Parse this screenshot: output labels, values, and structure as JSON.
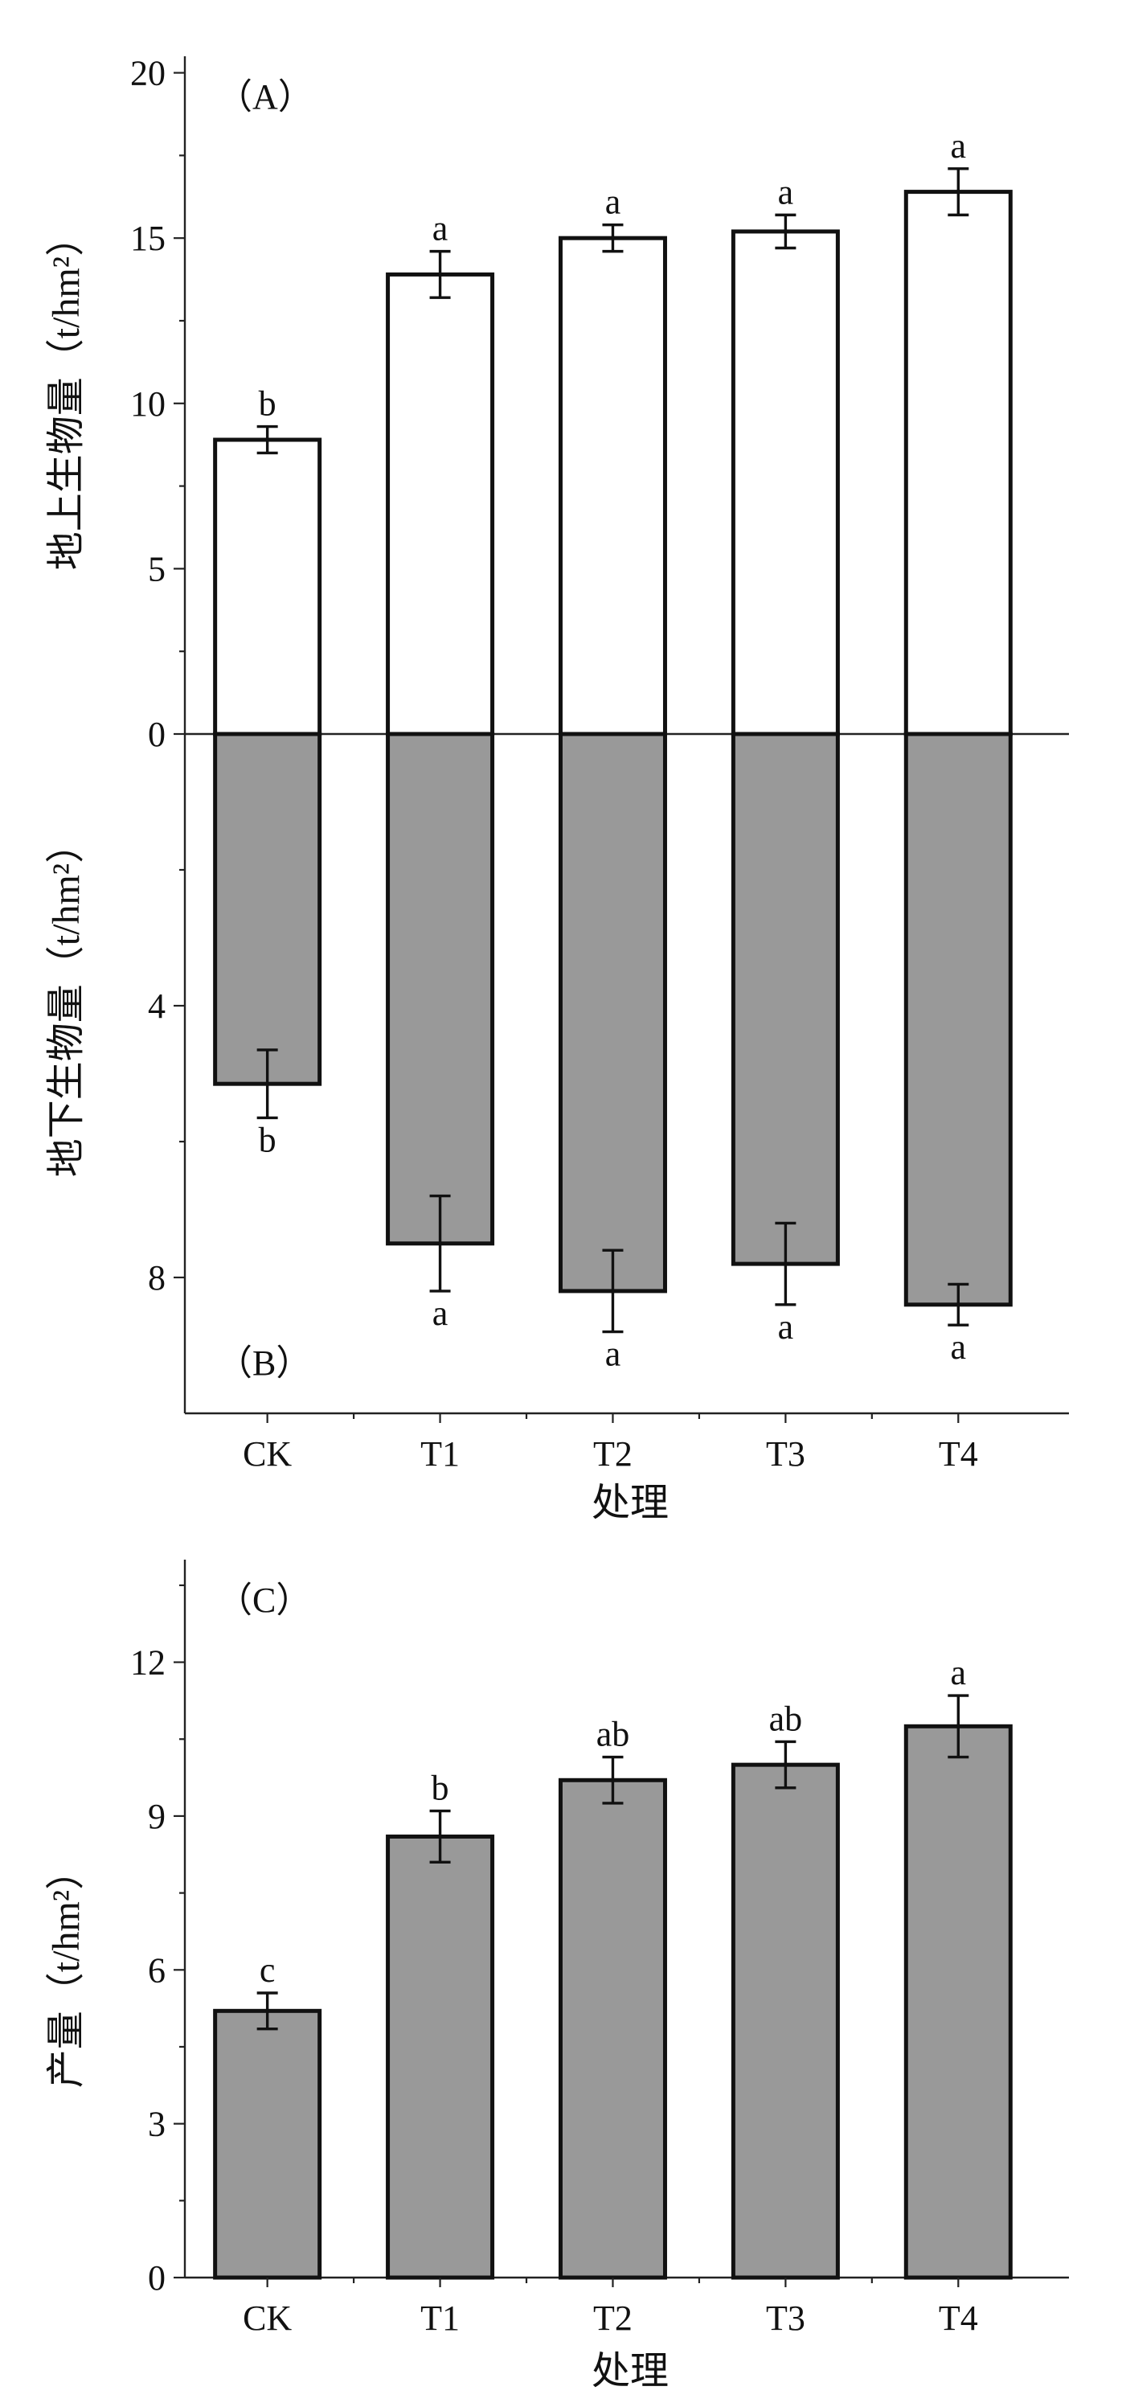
{
  "chart_data": [
    {
      "type": "bar",
      "panel_label": "（A）",
      "ylabel": "地上生物量（t/hm²）",
      "categories": [
        "CK",
        "T1",
        "T2",
        "T3",
        "T4"
      ],
      "values": [
        8.9,
        13.9,
        15.0,
        15.2,
        16.4
      ],
      "errors": [
        0.4,
        0.7,
        0.4,
        0.5,
        0.7
      ],
      "letters": [
        "b",
        "a",
        "a",
        "a",
        "a"
      ],
      "ylim": [
        0,
        20
      ],
      "yticks": [
        "0",
        "5",
        "10",
        "15",
        "20"
      ],
      "bar_color": "#ffffff"
    },
    {
      "type": "bar",
      "panel_label": "（B）",
      "ylabel": "地下生物量（t/hm²）",
      "categories": [
        "CK",
        "T1",
        "T2",
        "T3",
        "T4"
      ],
      "values": [
        5.15,
        7.5,
        8.2,
        7.8,
        8.4
      ],
      "errors": [
        0.5,
        0.7,
        0.6,
        0.6,
        0.3
      ],
      "letters": [
        "b",
        "a",
        "a",
        "a",
        "a"
      ],
      "ylim": [
        0,
        10
      ],
      "inverted": true,
      "yticks": [
        "4",
        "8"
      ],
      "bar_color": "#999999",
      "xlabel": "处理"
    },
    {
      "type": "bar",
      "panel_label": "（C）",
      "ylabel": "产量（t/hm²）",
      "categories": [
        "CK",
        "T1",
        "T2",
        "T3",
        "T4"
      ],
      "values": [
        5.2,
        8.6,
        9.7,
        10.0,
        10.75
      ],
      "errors": [
        0.35,
        0.5,
        0.45,
        0.45,
        0.6
      ],
      "letters": [
        "c",
        "b",
        "ab",
        "ab",
        "a"
      ],
      "ylim": [
        0,
        14
      ],
      "yticks": [
        "0",
        "3",
        "6",
        "9",
        "12"
      ],
      "bar_color": "#999999",
      "xlabel": "处理"
    }
  ]
}
